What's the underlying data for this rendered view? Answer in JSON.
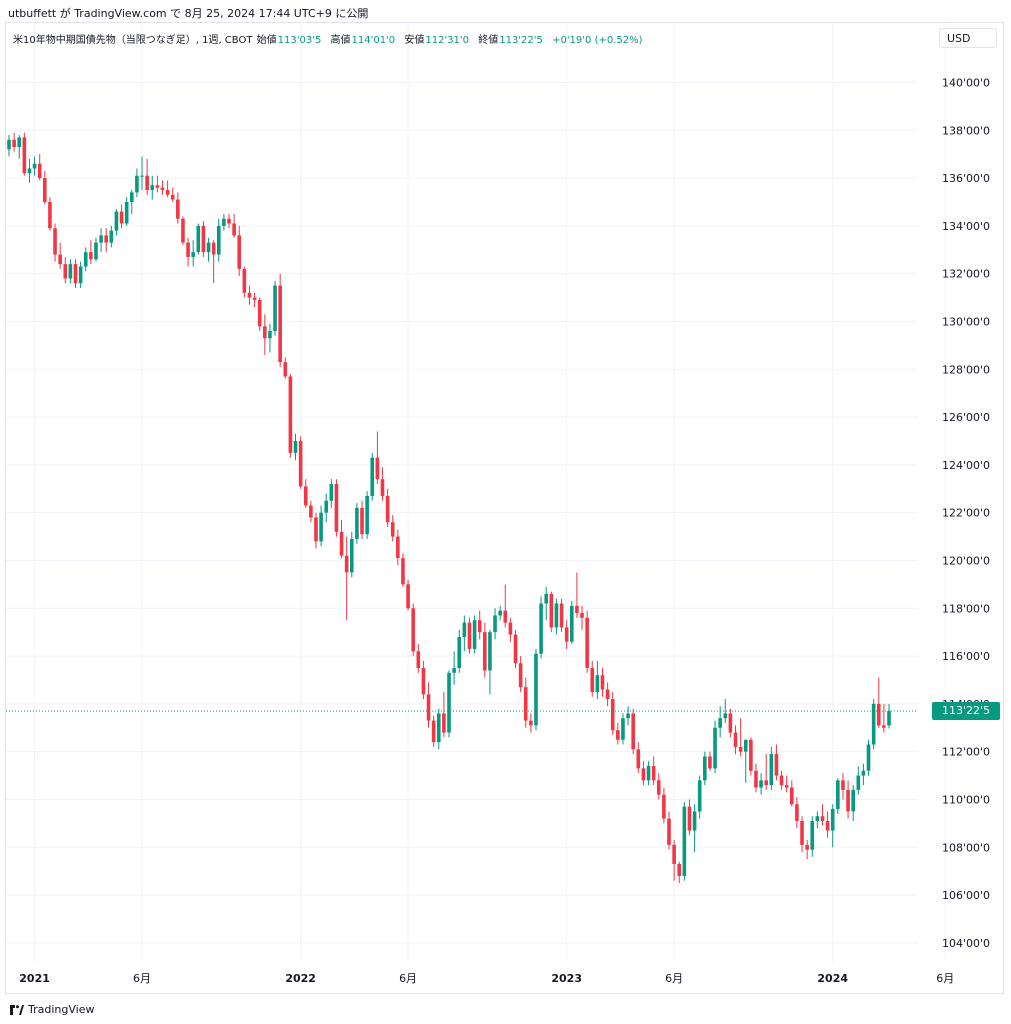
{
  "header": {
    "credit": "utbuffett が TradingView.com で 8月 25, 2024 17:44 UTC+9 に公開"
  },
  "legend": {
    "symbol": "米10年物中期国債先物（当限つなぎ足）, 1週, CBOT",
    "open_label": "始値",
    "open": "113'03'5",
    "high_label": "高値",
    "high": "114'01'0",
    "low_label": "安値",
    "low": "112'31'0",
    "close_label": "終値",
    "close": "113'22'5",
    "change": "+0'19'0 (+0.52%)"
  },
  "currency": "USD",
  "last_price_label": "113'22'5",
  "colors": {
    "up": "#089981",
    "down": "#f23645",
    "grid": "#f0f3fa",
    "axis_text": "#131722"
  },
  "footer": {
    "brand": "TradingView",
    "logo_icon": "tradingview-logo-icon"
  },
  "chart_data": {
    "type": "candlestick",
    "y_range": [
      103.2,
      141.4
    ],
    "y_ticks": [
      104,
      106,
      108,
      110,
      112,
      114,
      116,
      118,
      120,
      122,
      124,
      126,
      128,
      130,
      132,
      134,
      136,
      138,
      140
    ],
    "y_tick_labels": [
      "104'00'0",
      "106'00'0",
      "108'00'0",
      "110'00'0",
      "112'00'0",
      "114'00'0",
      "116'00'0",
      "118'00'0",
      "120'00'0",
      "122'00'0",
      "124'00'0",
      "126'00'0",
      "128'00'0",
      "130'00'0",
      "132'00'0",
      "134'00'0",
      "136'00'0",
      "138'00'0",
      "140'00'0"
    ],
    "x_labels": [
      {
        "label": "2021",
        "bar": 5,
        "bold": true
      },
      {
        "label": "6月",
        "bar": 26,
        "bold": false
      },
      {
        "label": "2022",
        "bar": 57,
        "bold": true
      },
      {
        "label": "6月",
        "bar": 78,
        "bold": false
      },
      {
        "label": "2023",
        "bar": 109,
        "bold": true
      },
      {
        "label": "6月",
        "bar": 130,
        "bold": false
      },
      {
        "label": "2024",
        "bar": 161,
        "bold": true
      },
      {
        "label": "6月",
        "bar": 183,
        "bold": false
      }
    ],
    "last_price": 113.7,
    "candles": [
      {
        "o": 137.2,
        "h": 137.8,
        "l": 136.9,
        "c": 137.6
      },
      {
        "o": 137.6,
        "h": 137.9,
        "l": 137.1,
        "c": 137.3
      },
      {
        "o": 137.3,
        "h": 137.8,
        "l": 136.8,
        "c": 137.7
      },
      {
        "o": 137.7,
        "h": 137.9,
        "l": 136.1,
        "c": 136.2
      },
      {
        "o": 136.2,
        "h": 136.8,
        "l": 135.8,
        "c": 136.4
      },
      {
        "o": 136.4,
        "h": 136.9,
        "l": 136.1,
        "c": 136.6
      },
      {
        "o": 136.6,
        "h": 137.0,
        "l": 135.9,
        "c": 136.0
      },
      {
        "o": 136.0,
        "h": 136.3,
        "l": 134.9,
        "c": 135.0
      },
      {
        "o": 135.0,
        "h": 135.2,
        "l": 133.8,
        "c": 133.9
      },
      {
        "o": 133.9,
        "h": 134.1,
        "l": 132.5,
        "c": 132.8
      },
      {
        "o": 132.8,
        "h": 133.3,
        "l": 132.2,
        "c": 132.4
      },
      {
        "o": 132.4,
        "h": 132.7,
        "l": 131.6,
        "c": 131.8
      },
      {
        "o": 131.8,
        "h": 132.6,
        "l": 131.6,
        "c": 132.4
      },
      {
        "o": 132.4,
        "h": 132.6,
        "l": 131.4,
        "c": 131.6
      },
      {
        "o": 131.6,
        "h": 132.5,
        "l": 131.4,
        "c": 132.3
      },
      {
        "o": 132.3,
        "h": 133.1,
        "l": 132.1,
        "c": 132.9
      },
      {
        "o": 132.9,
        "h": 133.4,
        "l": 132.4,
        "c": 132.6
      },
      {
        "o": 132.6,
        "h": 133.5,
        "l": 132.5,
        "c": 133.3
      },
      {
        "o": 133.3,
        "h": 133.9,
        "l": 132.9,
        "c": 133.6
      },
      {
        "o": 133.6,
        "h": 133.9,
        "l": 132.9,
        "c": 133.3
      },
      {
        "o": 133.3,
        "h": 134.0,
        "l": 133.1,
        "c": 133.8
      },
      {
        "o": 133.8,
        "h": 134.7,
        "l": 133.6,
        "c": 134.6
      },
      {
        "o": 134.6,
        "h": 134.9,
        "l": 133.9,
        "c": 134.1
      },
      {
        "o": 134.1,
        "h": 135.2,
        "l": 134.0,
        "c": 135.0
      },
      {
        "o": 135.0,
        "h": 135.5,
        "l": 134.5,
        "c": 135.4
      },
      {
        "o": 135.4,
        "h": 136.4,
        "l": 135.2,
        "c": 136.1
      },
      {
        "o": 136.1,
        "h": 136.9,
        "l": 135.5,
        "c": 136.1
      },
      {
        "o": 136.1,
        "h": 136.8,
        "l": 135.3,
        "c": 135.5
      },
      {
        "o": 135.5,
        "h": 136.1,
        "l": 135.1,
        "c": 135.7
      },
      {
        "o": 135.7,
        "h": 136.1,
        "l": 135.4,
        "c": 135.6
      },
      {
        "o": 135.6,
        "h": 135.9,
        "l": 135.3,
        "c": 135.5
      },
      {
        "o": 135.5,
        "h": 135.9,
        "l": 135.2,
        "c": 135.3
      },
      {
        "o": 135.3,
        "h": 135.6,
        "l": 135.0,
        "c": 135.1
      },
      {
        "o": 135.1,
        "h": 135.4,
        "l": 134.1,
        "c": 134.3
      },
      {
        "o": 134.3,
        "h": 134.4,
        "l": 133.2,
        "c": 133.3
      },
      {
        "o": 133.3,
        "h": 133.5,
        "l": 132.3,
        "c": 132.7
      },
      {
        "o": 132.7,
        "h": 133.4,
        "l": 132.3,
        "c": 132.9
      },
      {
        "o": 132.9,
        "h": 134.1,
        "l": 132.8,
        "c": 134.0
      },
      {
        "o": 134.0,
        "h": 134.2,
        "l": 132.7,
        "c": 132.9
      },
      {
        "o": 132.9,
        "h": 133.5,
        "l": 132.5,
        "c": 133.3
      },
      {
        "o": 133.3,
        "h": 133.4,
        "l": 131.6,
        "c": 132.8
      },
      {
        "o": 132.8,
        "h": 134.3,
        "l": 132.5,
        "c": 134.0
      },
      {
        "o": 134.0,
        "h": 134.5,
        "l": 133.8,
        "c": 134.3
      },
      {
        "o": 134.3,
        "h": 134.5,
        "l": 133.9,
        "c": 134.1
      },
      {
        "o": 134.1,
        "h": 134.5,
        "l": 133.5,
        "c": 133.6
      },
      {
        "o": 133.6,
        "h": 134.0,
        "l": 131.9,
        "c": 132.2
      },
      {
        "o": 132.2,
        "h": 132.3,
        "l": 131.0,
        "c": 131.2
      },
      {
        "o": 131.2,
        "h": 131.5,
        "l": 130.7,
        "c": 131.0
      },
      {
        "o": 131.0,
        "h": 131.2,
        "l": 130.6,
        "c": 130.9
      },
      {
        "o": 130.9,
        "h": 131.0,
        "l": 129.6,
        "c": 129.8
      },
      {
        "o": 129.8,
        "h": 130.3,
        "l": 128.6,
        "c": 129.3
      },
      {
        "o": 129.3,
        "h": 129.9,
        "l": 128.7,
        "c": 129.6
      },
      {
        "o": 129.6,
        "h": 131.7,
        "l": 129.4,
        "c": 131.5
      },
      {
        "o": 131.5,
        "h": 132.0,
        "l": 128.1,
        "c": 128.3
      },
      {
        "o": 128.3,
        "h": 128.5,
        "l": 127.6,
        "c": 127.7
      },
      {
        "o": 127.7,
        "h": 127.8,
        "l": 124.3,
        "c": 124.5
      },
      {
        "o": 124.5,
        "h": 125.3,
        "l": 124.2,
        "c": 125.0
      },
      {
        "o": 125.0,
        "h": 125.2,
        "l": 123.0,
        "c": 123.1
      },
      {
        "o": 123.1,
        "h": 123.4,
        "l": 122.2,
        "c": 122.3
      },
      {
        "o": 122.3,
        "h": 122.5,
        "l": 121.6,
        "c": 121.8
      },
      {
        "o": 121.8,
        "h": 122.0,
        "l": 120.5,
        "c": 120.8
      },
      {
        "o": 120.8,
        "h": 122.3,
        "l": 120.6,
        "c": 122.0
      },
      {
        "o": 122.0,
        "h": 122.8,
        "l": 121.6,
        "c": 122.5
      },
      {
        "o": 122.5,
        "h": 123.4,
        "l": 122.2,
        "c": 123.2
      },
      {
        "o": 123.2,
        "h": 123.4,
        "l": 121.0,
        "c": 121.2
      },
      {
        "o": 121.2,
        "h": 121.7,
        "l": 120.1,
        "c": 120.2
      },
      {
        "o": 120.2,
        "h": 121.0,
        "l": 117.5,
        "c": 119.5
      },
      {
        "o": 119.5,
        "h": 121.2,
        "l": 119.3,
        "c": 120.9
      },
      {
        "o": 120.9,
        "h": 122.4,
        "l": 120.7,
        "c": 122.2
      },
      {
        "o": 122.2,
        "h": 122.5,
        "l": 120.9,
        "c": 121.1
      },
      {
        "o": 121.1,
        "h": 122.9,
        "l": 120.9,
        "c": 122.7
      },
      {
        "o": 122.7,
        "h": 124.5,
        "l": 122.5,
        "c": 124.3
      },
      {
        "o": 124.3,
        "h": 125.4,
        "l": 123.2,
        "c": 123.4
      },
      {
        "o": 123.4,
        "h": 123.9,
        "l": 122.5,
        "c": 122.7
      },
      {
        "o": 122.7,
        "h": 123.0,
        "l": 121.4,
        "c": 121.6
      },
      {
        "o": 121.6,
        "h": 121.9,
        "l": 120.8,
        "c": 121.0
      },
      {
        "o": 121.0,
        "h": 121.3,
        "l": 119.8,
        "c": 120.1
      },
      {
        "o": 120.1,
        "h": 120.3,
        "l": 118.9,
        "c": 119.0
      },
      {
        "o": 119.0,
        "h": 119.2,
        "l": 117.9,
        "c": 118.0
      },
      {
        "o": 118.0,
        "h": 118.2,
        "l": 116.0,
        "c": 116.2
      },
      {
        "o": 116.2,
        "h": 116.5,
        "l": 115.3,
        "c": 115.5
      },
      {
        "o": 115.5,
        "h": 115.8,
        "l": 114.2,
        "c": 114.4
      },
      {
        "o": 114.4,
        "h": 114.9,
        "l": 113.0,
        "c": 113.3
      },
      {
        "o": 113.3,
        "h": 113.5,
        "l": 112.2,
        "c": 112.4
      },
      {
        "o": 112.4,
        "h": 113.8,
        "l": 112.1,
        "c": 113.6
      },
      {
        "o": 113.6,
        "h": 114.5,
        "l": 112.6,
        "c": 112.8
      },
      {
        "o": 112.8,
        "h": 115.4,
        "l": 112.6,
        "c": 115.3
      },
      {
        "o": 115.3,
        "h": 116.2,
        "l": 114.8,
        "c": 115.5
      },
      {
        "o": 115.5,
        "h": 117.1,
        "l": 115.3,
        "c": 116.8
      },
      {
        "o": 116.8,
        "h": 117.7,
        "l": 116.2,
        "c": 117.4
      },
      {
        "o": 117.4,
        "h": 117.6,
        "l": 116.1,
        "c": 116.3
      },
      {
        "o": 116.3,
        "h": 117.7,
        "l": 116.1,
        "c": 117.5
      },
      {
        "o": 117.5,
        "h": 117.9,
        "l": 116.7,
        "c": 117.0
      },
      {
        "o": 117.0,
        "h": 117.4,
        "l": 115.1,
        "c": 115.4
      },
      {
        "o": 115.4,
        "h": 117.1,
        "l": 114.4,
        "c": 117.0
      },
      {
        "o": 117.0,
        "h": 118.0,
        "l": 116.7,
        "c": 117.7
      },
      {
        "o": 117.7,
        "h": 118.1,
        "l": 117.5,
        "c": 117.9
      },
      {
        "o": 117.9,
        "h": 119.0,
        "l": 117.2,
        "c": 117.4
      },
      {
        "o": 117.4,
        "h": 117.6,
        "l": 116.6,
        "c": 116.9
      },
      {
        "o": 116.9,
        "h": 117.1,
        "l": 115.5,
        "c": 115.7
      },
      {
        "o": 115.7,
        "h": 116.0,
        "l": 114.5,
        "c": 114.7
      },
      {
        "o": 114.7,
        "h": 115.1,
        "l": 113.0,
        "c": 113.3
      },
      {
        "o": 113.3,
        "h": 113.6,
        "l": 112.8,
        "c": 113.1
      },
      {
        "o": 113.1,
        "h": 116.3,
        "l": 112.9,
        "c": 116.1
      },
      {
        "o": 116.1,
        "h": 118.5,
        "l": 115.9,
        "c": 118.2
      },
      {
        "o": 118.2,
        "h": 118.9,
        "l": 117.5,
        "c": 118.6
      },
      {
        "o": 118.6,
        "h": 118.7,
        "l": 117.0,
        "c": 117.2
      },
      {
        "o": 117.2,
        "h": 118.4,
        "l": 116.9,
        "c": 118.2
      },
      {
        "o": 118.2,
        "h": 118.4,
        "l": 117.0,
        "c": 117.2
      },
      {
        "o": 117.2,
        "h": 117.5,
        "l": 116.3,
        "c": 116.6
      },
      {
        "o": 116.6,
        "h": 118.3,
        "l": 116.5,
        "c": 118.1
      },
      {
        "o": 118.1,
        "h": 119.5,
        "l": 117.6,
        "c": 117.8
      },
      {
        "o": 117.8,
        "h": 118.1,
        "l": 117.1,
        "c": 117.6
      },
      {
        "o": 117.6,
        "h": 117.9,
        "l": 115.3,
        "c": 115.5
      },
      {
        "o": 115.5,
        "h": 115.8,
        "l": 114.3,
        "c": 114.5
      },
      {
        "o": 114.5,
        "h": 115.8,
        "l": 114.2,
        "c": 115.2
      },
      {
        "o": 115.2,
        "h": 115.5,
        "l": 114.3,
        "c": 114.6
      },
      {
        "o": 114.6,
        "h": 114.9,
        "l": 113.9,
        "c": 114.2
      },
      {
        "o": 114.2,
        "h": 114.5,
        "l": 112.7,
        "c": 112.9
      },
      {
        "o": 112.9,
        "h": 113.2,
        "l": 112.3,
        "c": 112.5
      },
      {
        "o": 112.5,
        "h": 113.6,
        "l": 112.3,
        "c": 113.4
      },
      {
        "o": 113.4,
        "h": 113.9,
        "l": 113.1,
        "c": 113.6
      },
      {
        "o": 113.6,
        "h": 113.8,
        "l": 111.9,
        "c": 112.1
      },
      {
        "o": 112.1,
        "h": 112.4,
        "l": 111.1,
        "c": 111.3
      },
      {
        "o": 111.3,
        "h": 111.6,
        "l": 110.6,
        "c": 110.8
      },
      {
        "o": 110.8,
        "h": 111.6,
        "l": 110.6,
        "c": 111.4
      },
      {
        "o": 111.4,
        "h": 111.8,
        "l": 110.6,
        "c": 110.8
      },
      {
        "o": 110.8,
        "h": 111.1,
        "l": 110.0,
        "c": 110.2
      },
      {
        "o": 110.2,
        "h": 110.5,
        "l": 109.0,
        "c": 109.2
      },
      {
        "o": 109.2,
        "h": 109.5,
        "l": 107.9,
        "c": 108.1
      },
      {
        "o": 108.1,
        "h": 108.3,
        "l": 106.6,
        "c": 107.3
      },
      {
        "o": 107.3,
        "h": 107.4,
        "l": 106.5,
        "c": 106.8
      },
      {
        "o": 106.8,
        "h": 109.9,
        "l": 106.6,
        "c": 109.7
      },
      {
        "o": 109.7,
        "h": 110.0,
        "l": 108.5,
        "c": 108.7
      },
      {
        "o": 108.7,
        "h": 109.8,
        "l": 107.8,
        "c": 109.5
      },
      {
        "o": 109.5,
        "h": 111.0,
        "l": 109.2,
        "c": 110.8
      },
      {
        "o": 110.8,
        "h": 112.0,
        "l": 110.6,
        "c": 111.8
      },
      {
        "o": 111.8,
        "h": 112.0,
        "l": 111.2,
        "c": 111.3
      },
      {
        "o": 111.3,
        "h": 113.3,
        "l": 111.1,
        "c": 113.0
      },
      {
        "o": 113.0,
        "h": 113.9,
        "l": 112.6,
        "c": 113.4
      },
      {
        "o": 113.4,
        "h": 114.2,
        "l": 113.2,
        "c": 113.6
      },
      {
        "o": 113.6,
        "h": 113.8,
        "l": 112.6,
        "c": 112.8
      },
      {
        "o": 112.8,
        "h": 113.1,
        "l": 111.9,
        "c": 112.2
      },
      {
        "o": 112.2,
        "h": 113.4,
        "l": 111.8,
        "c": 112.0
      },
      {
        "o": 112.0,
        "h": 112.5,
        "l": 110.7,
        "c": 112.5
      },
      {
        "o": 112.5,
        "h": 112.6,
        "l": 111.0,
        "c": 111.2
      },
      {
        "o": 111.2,
        "h": 111.5,
        "l": 110.3,
        "c": 110.5
      },
      {
        "o": 110.5,
        "h": 111.1,
        "l": 110.2,
        "c": 110.8
      },
      {
        "o": 110.8,
        "h": 111.9,
        "l": 110.4,
        "c": 110.6
      },
      {
        "o": 110.6,
        "h": 112.2,
        "l": 110.4,
        "c": 111.9
      },
      {
        "o": 111.9,
        "h": 112.3,
        "l": 110.8,
        "c": 111.0
      },
      {
        "o": 111.0,
        "h": 111.2,
        "l": 110.4,
        "c": 110.6
      },
      {
        "o": 110.6,
        "h": 111.0,
        "l": 110.3,
        "c": 110.5
      },
      {
        "o": 110.5,
        "h": 110.8,
        "l": 109.7,
        "c": 109.8
      },
      {
        "o": 109.8,
        "h": 110.1,
        "l": 108.8,
        "c": 109.1
      },
      {
        "o": 109.1,
        "h": 109.3,
        "l": 107.8,
        "c": 108.1
      },
      {
        "o": 108.1,
        "h": 108.3,
        "l": 107.5,
        "c": 107.9
      },
      {
        "o": 107.9,
        "h": 109.3,
        "l": 107.6,
        "c": 109.1
      },
      {
        "o": 109.1,
        "h": 109.5,
        "l": 108.8,
        "c": 109.3
      },
      {
        "o": 109.3,
        "h": 109.8,
        "l": 108.9,
        "c": 109.1
      },
      {
        "o": 109.1,
        "h": 109.5,
        "l": 108.4,
        "c": 108.7
      },
      {
        "o": 108.7,
        "h": 109.8,
        "l": 108.0,
        "c": 109.6
      },
      {
        "o": 109.6,
        "h": 110.9,
        "l": 109.4,
        "c": 110.8
      },
      {
        "o": 110.8,
        "h": 111.1,
        "l": 110.0,
        "c": 110.4
      },
      {
        "o": 110.4,
        "h": 110.8,
        "l": 109.2,
        "c": 109.5
      },
      {
        "o": 109.5,
        "h": 110.6,
        "l": 109.1,
        "c": 110.4
      },
      {
        "o": 110.4,
        "h": 111.4,
        "l": 110.2,
        "c": 111.0
      },
      {
        "o": 111.0,
        "h": 111.5,
        "l": 110.6,
        "c": 111.2
      },
      {
        "o": 111.2,
        "h": 112.5,
        "l": 111.0,
        "c": 112.3
      },
      {
        "o": 112.3,
        "h": 114.2,
        "l": 112.1,
        "c": 114.0
      },
      {
        "o": 114.0,
        "h": 115.1,
        "l": 113.0,
        "c": 113.1
      },
      {
        "o": 113.1,
        "h": 114.0,
        "l": 112.8,
        "c": 113.0
      },
      {
        "o": 113.1,
        "h": 114.0,
        "l": 112.97,
        "c": 113.7
      }
    ]
  }
}
